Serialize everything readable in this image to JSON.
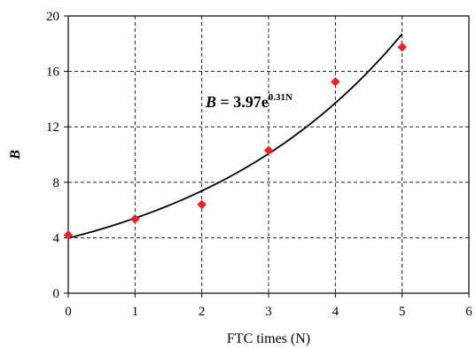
{
  "chart_data": {
    "type": "scatter",
    "xlabel": "FTC times (N)",
    "ylabel": "B",
    "xlim": [
      0,
      6
    ],
    "ylim": [
      0,
      20
    ],
    "x_ticks": [
      "0",
      "1",
      "2",
      "3",
      "4",
      "5",
      "6"
    ],
    "y_ticks": [
      "0",
      "4",
      "8",
      "12",
      "16",
      "20"
    ],
    "grid": true,
    "grid_style": "dashed",
    "marker_color": "#e8232a",
    "fit_color": "#000000",
    "points": [
      {
        "x": 0,
        "y": 4.2
      },
      {
        "x": 1,
        "y": 5.35
      },
      {
        "x": 2,
        "y": 6.4
      },
      {
        "x": 3,
        "y": 10.3
      },
      {
        "x": 4,
        "y": 15.25
      },
      {
        "x": 5,
        "y": 17.75
      }
    ],
    "fit": {
      "a": 3.97,
      "b": 0.31,
      "x_range": [
        0,
        5
      ]
    },
    "annotation": {
      "var": "B",
      "coef": " = 3.97e",
      "exp": "0.31N"
    }
  }
}
